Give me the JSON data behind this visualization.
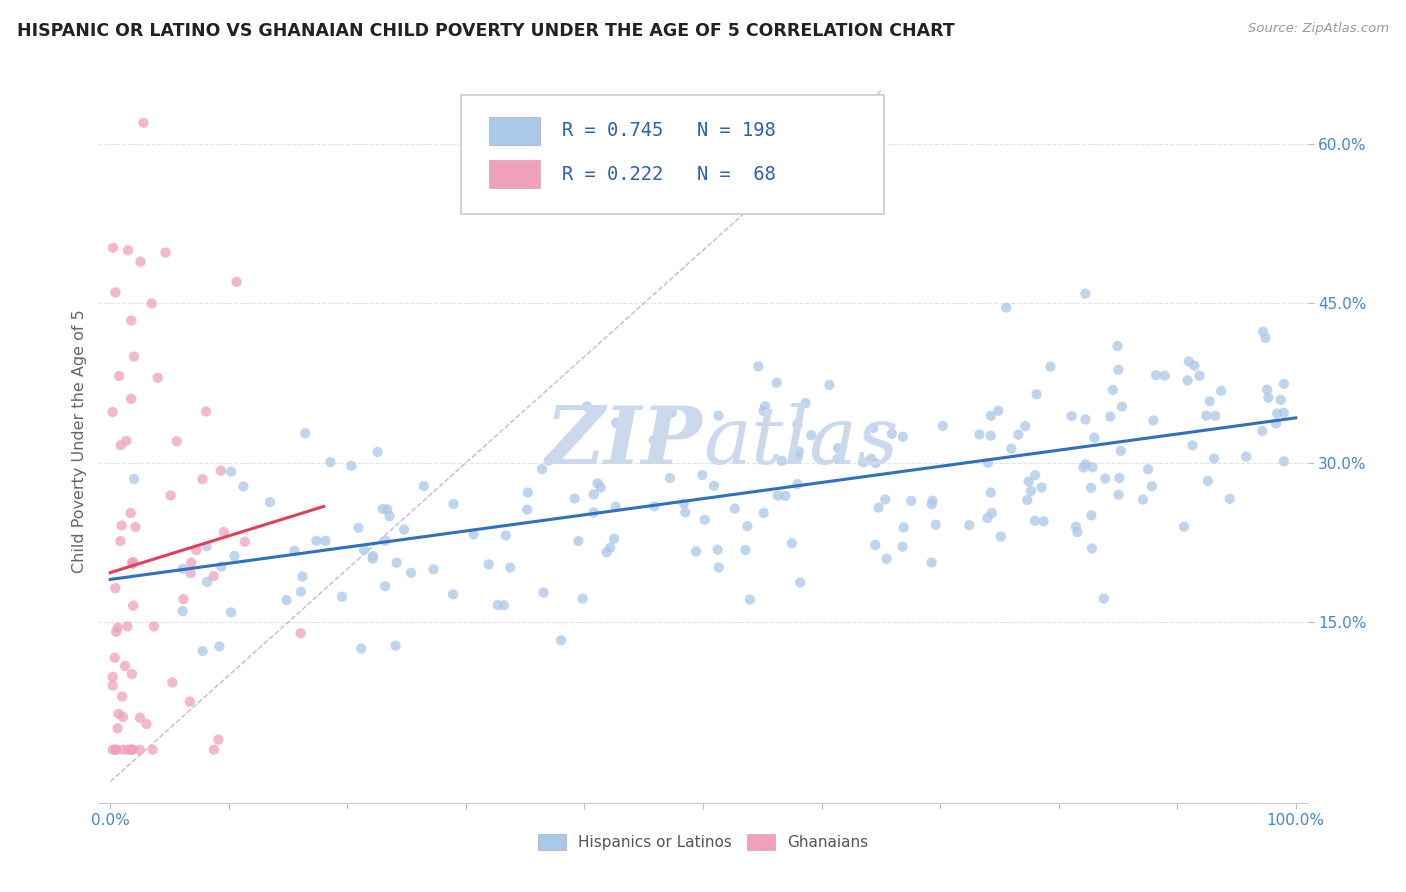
{
  "title": "HISPANIC OR LATINO VS GHANAIAN CHILD POVERTY UNDER THE AGE OF 5 CORRELATION CHART",
  "source": "Source: ZipAtlas.com",
  "ylabel": "Child Poverty Under the Age of 5",
  "blue_R": 0.745,
  "blue_N": 198,
  "pink_R": 0.222,
  "pink_N": 68,
  "blue_color": "#aac8e8",
  "pink_color": "#f0a0b8",
  "blue_line_color": "#3070c0",
  "pink_line_color": "#e04060",
  "ref_line_color": "#c0b0d0",
  "background_color": "#ffffff",
  "watermark_color": "#ccd8ec",
  "legend_color": "#3060b0",
  "tick_color": "#4488cc",
  "grid_color": "#d8dde8",
  "ylabel_color": "#666666",
  "figsize": [
    14.06,
    8.92
  ],
  "dpi": 100,
  "blue_intercept": 0.185,
  "blue_slope": 0.155,
  "pink_intercept": 0.14,
  "pink_slope": 0.85
}
